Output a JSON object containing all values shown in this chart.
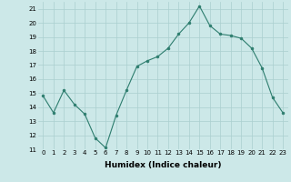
{
  "x": [
    0,
    1,
    2,
    3,
    4,
    5,
    6,
    7,
    8,
    9,
    10,
    11,
    12,
    13,
    14,
    15,
    16,
    17,
    18,
    19,
    20,
    21,
    22,
    23
  ],
  "y": [
    14.8,
    13.6,
    15.2,
    14.2,
    13.5,
    11.8,
    11.1,
    13.4,
    15.2,
    16.9,
    17.3,
    17.6,
    18.2,
    19.2,
    20.0,
    21.2,
    19.8,
    19.2,
    19.1,
    18.9,
    18.2,
    16.8,
    14.7,
    13.6
  ],
  "line_color": "#2d7d6e",
  "marker_color": "#2d7d6e",
  "bg_color": "#cce8e8",
  "grid_color": "#aacfcf",
  "xlabel": "Humidex (Indice chaleur)",
  "ylim": [
    11,
    21.5
  ],
  "xlim": [
    -0.5,
    23.5
  ],
  "yticks": [
    11,
    12,
    13,
    14,
    15,
    16,
    17,
    18,
    19,
    20,
    21
  ],
  "xticks": [
    0,
    1,
    2,
    3,
    4,
    5,
    6,
    7,
    8,
    9,
    10,
    11,
    12,
    13,
    14,
    15,
    16,
    17,
    18,
    19,
    20,
    21,
    22,
    23
  ],
  "tick_fontsize": 5.0,
  "xlabel_fontsize": 6.5
}
